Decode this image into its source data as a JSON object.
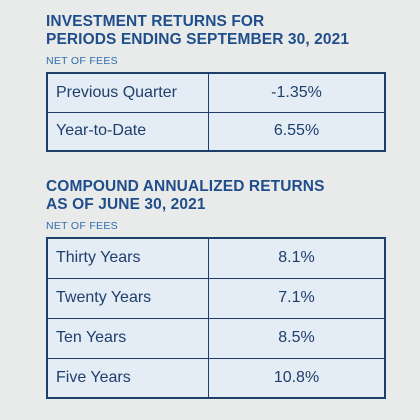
{
  "investment_returns": {
    "title_line1": "INVESTMENT RETURNS FOR",
    "title_line2": "PERIODS ENDING SEPTEMBER 30, 2021",
    "subtitle": "NET OF FEES",
    "rows": [
      {
        "label": "Previous Quarter",
        "value": "-1.35%"
      },
      {
        "label": "Year-to-Date",
        "value": "6.55%"
      }
    ]
  },
  "compound_returns": {
    "title_line1": "COMPOUND ANNUALIZED RETURNS",
    "title_line2": "AS OF JUNE 30, 2021",
    "subtitle": "NET OF FEES",
    "rows": [
      {
        "label": "Thirty Years",
        "value": "8.1%"
      },
      {
        "label": "Twenty Years",
        "value": "7.1%"
      },
      {
        "label": "Ten Years",
        "value": "8.5%"
      },
      {
        "label": "Five Years",
        "value": "10.8%"
      }
    ]
  },
  "colors": {
    "background": "#e9eaea",
    "heading": "#1f4e8a",
    "subheading": "#2f6db0",
    "table_fill": "#e4ecf5",
    "table_border": "#1f3f6b"
  }
}
